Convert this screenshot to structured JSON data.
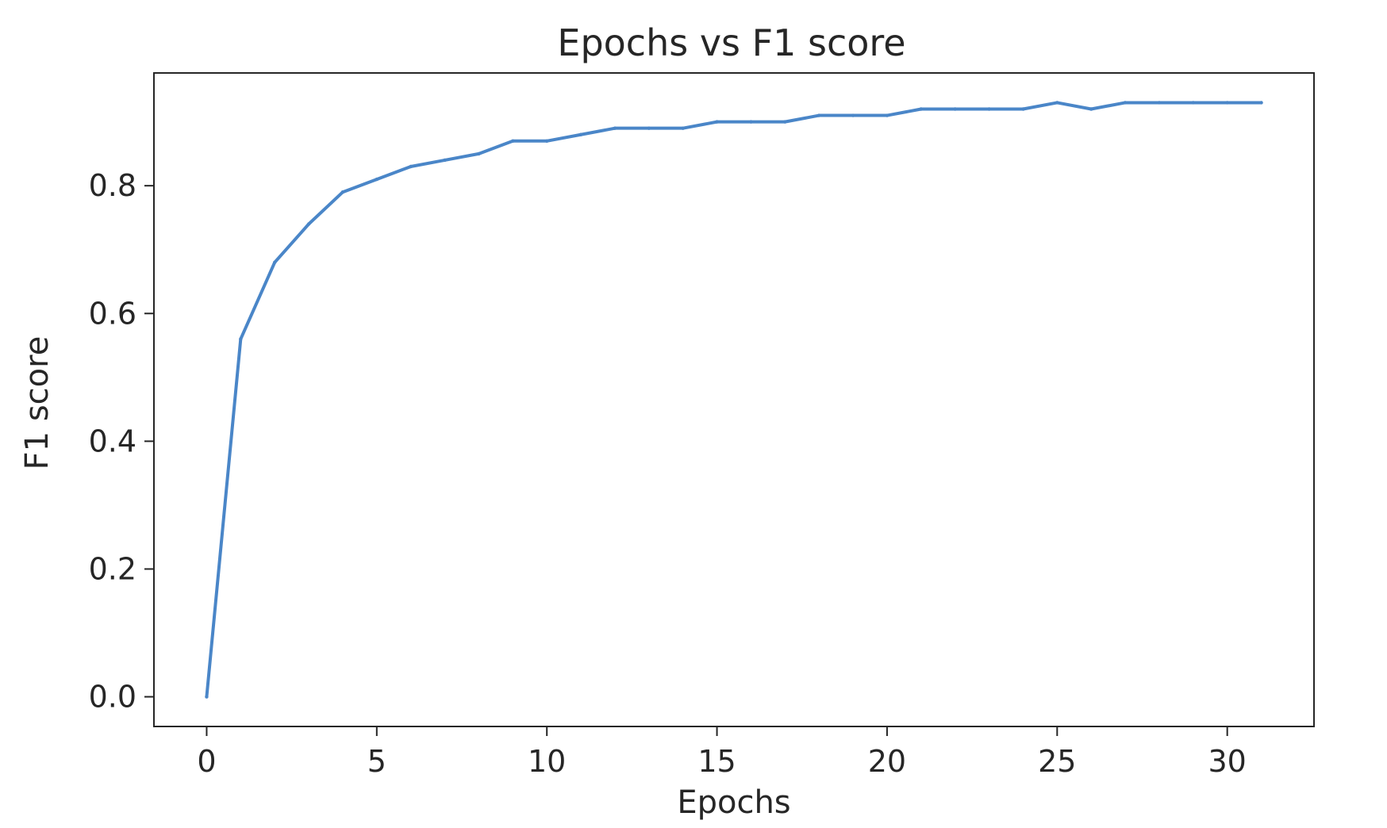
{
  "chart_data": {
    "type": "line",
    "title": "Epochs vs F1 score",
    "xlabel": "Epochs",
    "ylabel": "F1 score",
    "xlim": [
      -1.55,
      32.55
    ],
    "ylim": [
      -0.0465,
      0.9765
    ],
    "xticks": [
      0,
      5,
      10,
      15,
      20,
      25,
      30
    ],
    "xtick_labels": [
      "0",
      "5",
      "10",
      "15",
      "20",
      "25",
      "30"
    ],
    "yticks": [
      0.0,
      0.2,
      0.4,
      0.6,
      0.8
    ],
    "ytick_labels": [
      "0.0",
      "0.2",
      "0.4",
      "0.6",
      "0.8"
    ],
    "grid": false,
    "legend": "none",
    "series": [
      {
        "color": "#4a86c8",
        "x": [
          0,
          1,
          2,
          3,
          4,
          5,
          6,
          7,
          8,
          9,
          10,
          11,
          12,
          13,
          14,
          15,
          16,
          17,
          18,
          19,
          20,
          21,
          22,
          23,
          24,
          25,
          26,
          27,
          28,
          29,
          30,
          31
        ],
        "y": [
          0.0,
          0.56,
          0.68,
          0.74,
          0.79,
          0.81,
          0.83,
          0.84,
          0.85,
          0.87,
          0.87,
          0.88,
          0.89,
          0.89,
          0.89,
          0.9,
          0.9,
          0.9,
          0.91,
          0.91,
          0.91,
          0.92,
          0.92,
          0.92,
          0.92,
          0.93,
          0.92,
          0.93,
          0.93,
          0.93,
          0.93,
          0.93
        ]
      }
    ]
  }
}
